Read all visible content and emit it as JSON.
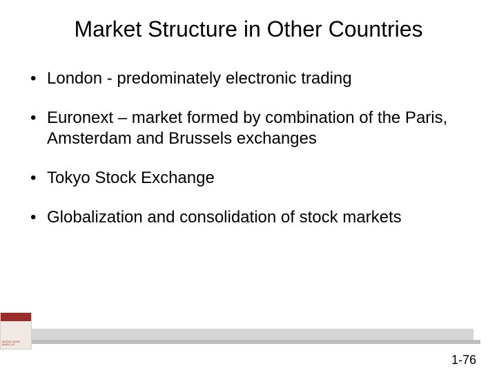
{
  "title": "Market Structure in Other Countries",
  "bullets": [
    "London - predominately electronic trading",
    "Euronext – market formed by combination of the Paris, Amsterdam and Brussels exchanges",
    "Tokyo Stock Exchange",
    "Globalization and consolidation of stock markets"
  ],
  "page_number": "1-76",
  "colors": {
    "background": "#ffffff",
    "text": "#000000",
    "logo_accent": "#9b2c2c",
    "logo_bg": "#f0e9e3",
    "bar_light": "#d6d6d6",
    "bar_dark": "#bfbfbf"
  },
  "typography": {
    "title_fontsize": 32,
    "body_fontsize": 24,
    "pagenum_fontsize": 18,
    "font_family": "Arial"
  }
}
